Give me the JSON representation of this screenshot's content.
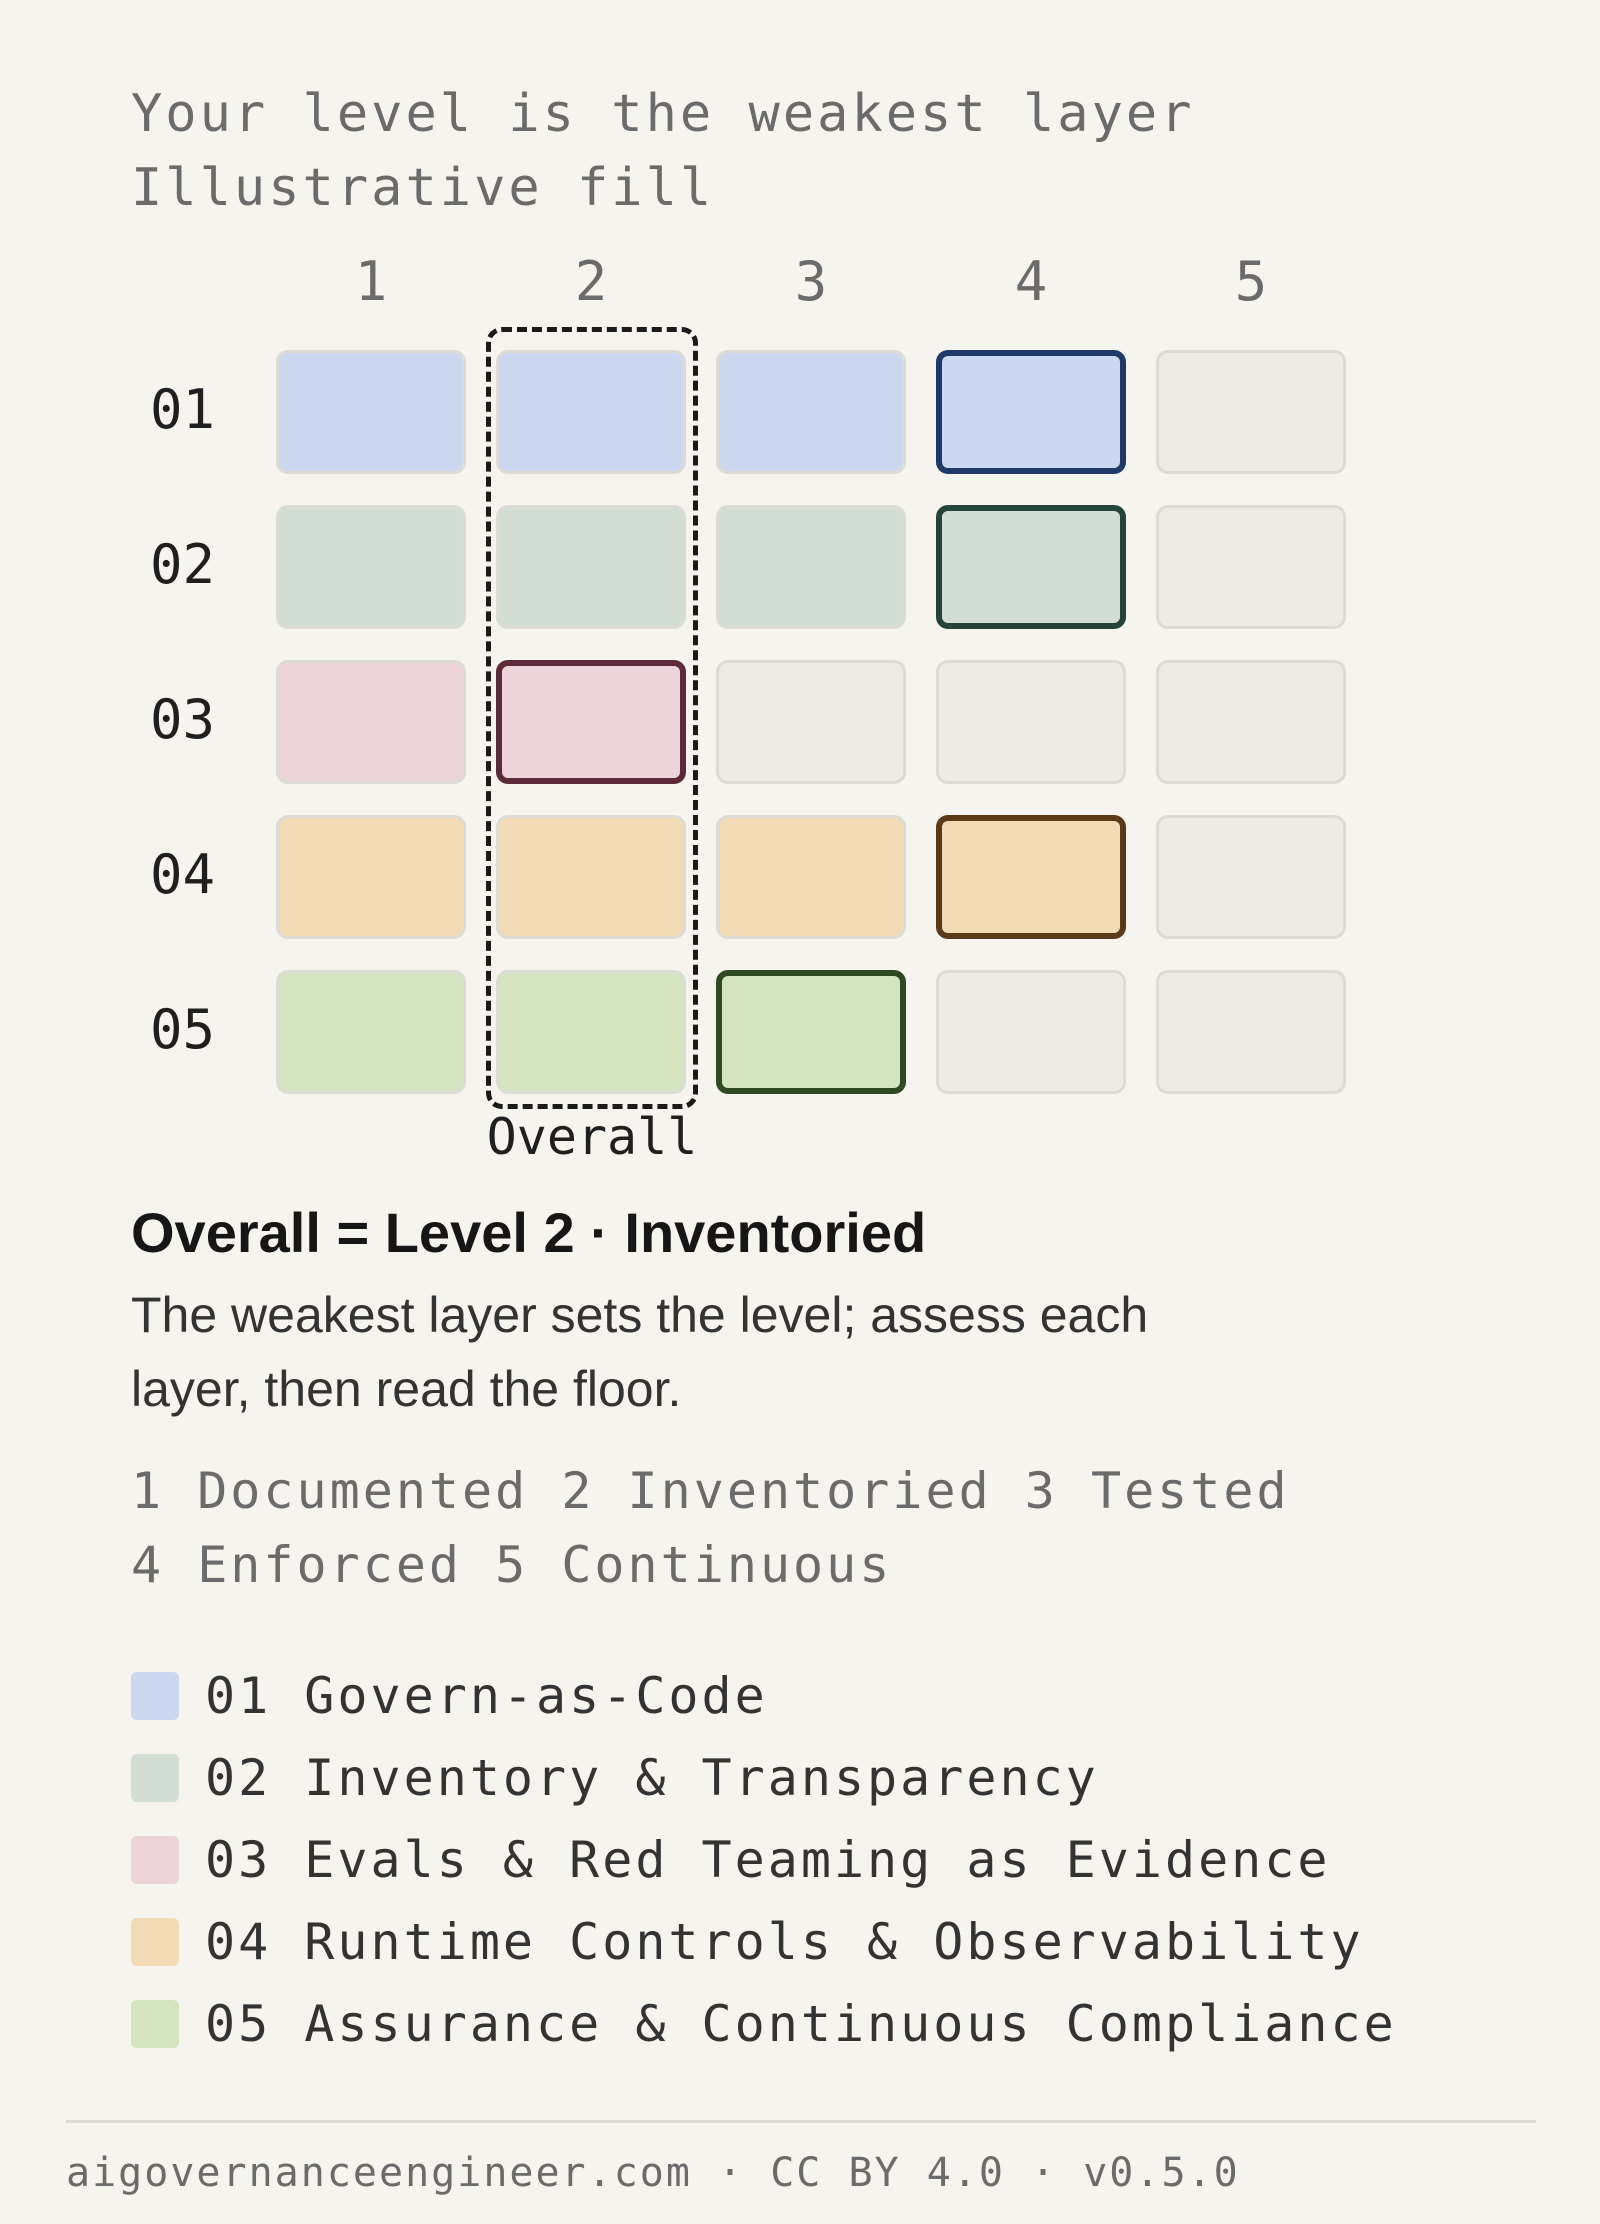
{
  "header": {
    "title": "Your level is the weakest layer",
    "subtitle": "Illustrative fill"
  },
  "matrix": {
    "columns": [
      "1",
      "2",
      "3",
      "4",
      "5"
    ],
    "rows": [
      {
        "label": "01",
        "level": 4,
        "fill": "#ccd8ef",
        "outline": "#1f3a68"
      },
      {
        "label": "02",
        "level": 4,
        "fill": "#d1ddd5",
        "outline": "#24443a"
      },
      {
        "label": "03",
        "level": 2,
        "fill": "#edd4da",
        "outline": "#5c2a3a"
      },
      {
        "label": "04",
        "level": 4,
        "fill": "#f2dab4",
        "outline": "#5a3a18"
      },
      {
        "label": "05",
        "level": 3,
        "fill": "#d3e4bf",
        "outline": "#2e4a22"
      }
    ],
    "empty_fill": "#ecebe6",
    "overall_column": 2,
    "overall_label": "Overall"
  },
  "summary": {
    "title": "Overall = Level 2 · Inventoried",
    "description": "The weakest layer sets the level; assess each layer, then read the floor."
  },
  "levels": {
    "line1": "1 Documented 2 Inventoried 3 Tested",
    "line2": "4 Enforced 5 Continuous"
  },
  "legend": [
    {
      "label": "01 Govern-as-Code",
      "color": "#ccd8ef"
    },
    {
      "label": "02 Inventory & Transparency",
      "color": "#d1ddd5"
    },
    {
      "label": "03 Evals & Red Teaming as Evidence",
      "color": "#edd4da"
    },
    {
      "label": "04 Runtime Controls & Observability",
      "color": "#f2dab4"
    },
    {
      "label": "05 Assurance & Continuous Compliance",
      "color": "#d3e4bf"
    }
  ],
  "footer": {
    "text": "aigovernanceengineer.com · CC BY 4.0 · v0.5.0"
  }
}
